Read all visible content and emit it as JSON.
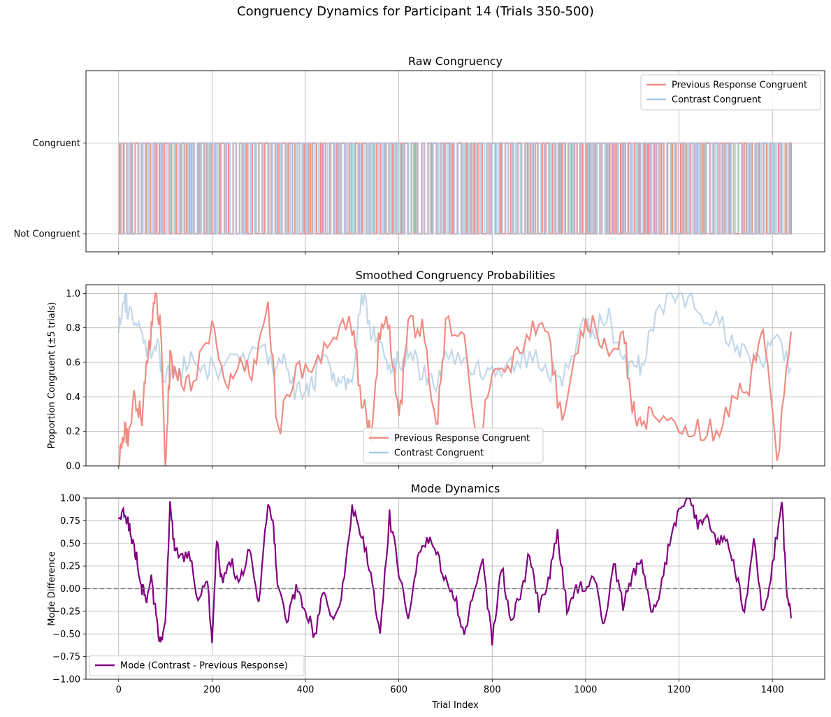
{
  "figure": {
    "title": "Congruency Dynamics for Participant 14 (Trials 350-500)"
  },
  "colors": {
    "previous_response": "#f28b82",
    "contrast": "#a8c8e1",
    "mode": "#800080",
    "grid": "#b0b0b0",
    "zero_line": "#808080"
  },
  "chart_data": [
    {
      "type": "line",
      "title": "Raw Congruency",
      "xlabel": "",
      "ylabel": "",
      "xlim": [
        -70,
        1512
      ],
      "ylim": [
        -0.2,
        1.8
      ],
      "x_range": [
        0,
        1440
      ],
      "ytick_labels": [
        "Not Congruent",
        "Congruent"
      ],
      "ytick_values": [
        0,
        1
      ],
      "grid": true,
      "legend": {
        "placement": "upper right",
        "entries": [
          "Previous Response Congruent",
          "Contrast Congruent"
        ]
      },
      "series": [
        {
          "name": "Previous Response Congruent",
          "values_description": "binary 0/1 per trial",
          "switches": 240
        },
        {
          "name": "Contrast Congruent",
          "values_description": "binary 0/1 per trial",
          "switches": 300
        }
      ]
    },
    {
      "type": "line",
      "title": "Smoothed Congruency Probabilities",
      "xlabel": "",
      "ylabel": "Proportion Congruent (±5 trials)",
      "xlim": [
        -70,
        1512
      ],
      "ylim": [
        0,
        1.05
      ],
      "yticks": [
        "0.0",
        "0.2",
        "0.4",
        "0.6",
        "0.8",
        "1.0"
      ],
      "grid": true,
      "legend": {
        "placement": "lower center",
        "entries": [
          "Previous Response Congruent",
          "Contrast Congruent"
        ]
      },
      "series": [
        {
          "name": "Previous Response Congruent",
          "x": [
            0,
            10,
            20,
            35,
            50,
            60,
            70,
            80,
            90,
            100,
            110,
            130,
            160,
            200,
            230,
            260,
            290,
            320,
            340,
            380,
            420,
            460,
            500,
            520,
            540,
            560,
            580,
            600,
            620,
            650,
            680,
            700,
            740,
            770,
            800,
            840,
            880,
            920,
            950,
            990,
            1020,
            1050,
            1080,
            1100,
            1120,
            1150,
            1200,
            1240,
            1280,
            1320,
            1350,
            1380,
            1410,
            1440
          ],
          "y": [
            0.0,
            0.18,
            0.18,
            0.4,
            0.3,
            0.6,
            0.8,
            1.0,
            0.8,
            0.0,
            0.6,
            0.5,
            0.5,
            0.8,
            0.5,
            0.55,
            0.55,
            1.0,
            0.2,
            0.55,
            0.55,
            0.8,
            0.8,
            0.4,
            0.2,
            0.8,
            0.8,
            0.25,
            0.8,
            0.8,
            0.2,
            0.8,
            0.8,
            0.1,
            0.6,
            0.6,
            0.8,
            0.8,
            0.2,
            0.8,
            0.8,
            0.6,
            0.8,
            0.35,
            0.2,
            0.35,
            0.2,
            0.2,
            0.2,
            0.4,
            0.45,
            0.8,
            0.0,
            0.8
          ]
        },
        {
          "name": "Contrast Congruent",
          "x": [
            0,
            10,
            20,
            40,
            60,
            80,
            100,
            120,
            150,
            180,
            200,
            240,
            280,
            320,
            340,
            360,
            380,
            400,
            420,
            440,
            460,
            480,
            500,
            520,
            540,
            560,
            580,
            600,
            620,
            650,
            680,
            700,
            740,
            770,
            800,
            840,
            880,
            920,
            950,
            990,
            1020,
            1050,
            1080,
            1100,
            1120,
            1150,
            1200,
            1240,
            1280,
            1320,
            1350,
            1380,
            1410,
            1440
          ],
          "y": [
            0.8,
            1.0,
            0.9,
            0.8,
            0.65,
            0.7,
            0.5,
            0.55,
            0.6,
            0.6,
            0.55,
            0.6,
            0.65,
            0.65,
            0.55,
            0.6,
            0.4,
            0.45,
            0.5,
            0.7,
            0.5,
            0.45,
            0.5,
            1.0,
            0.8,
            0.7,
            0.6,
            0.6,
            0.65,
            0.55,
            0.5,
            0.65,
            0.6,
            0.55,
            0.55,
            0.6,
            0.65,
            0.55,
            0.5,
            0.8,
            0.8,
            0.85,
            0.6,
            0.55,
            0.6,
            0.9,
            1.0,
            0.9,
            0.85,
            0.7,
            0.65,
            0.6,
            0.75,
            0.55
          ]
        }
      ]
    },
    {
      "type": "line",
      "title": "Mode Dynamics",
      "xlabel": "Trial Index",
      "ylabel": "Mode Difference",
      "xlim": [
        -70,
        1512
      ],
      "ylim": [
        -1.0,
        1.0
      ],
      "yticks": [
        "−1.00",
        "−0.75",
        "−0.50",
        "−0.25",
        "0.00",
        "0.25",
        "0.50",
        "0.75",
        "1.00"
      ],
      "xticks": [
        "0",
        "200",
        "400",
        "600",
        "800",
        "1000",
        "1200",
        "1400"
      ],
      "grid": true,
      "reference_line": {
        "y": 0.0,
        "style": "dashed"
      },
      "legend": {
        "placement": "lower left",
        "entries": [
          "Mode (Contrast - Previous Response)"
        ]
      },
      "series": [
        {
          "name": "Mode (Contrast - Previous Response)",
          "x": [
            0,
            10,
            20,
            30,
            40,
            50,
            60,
            70,
            80,
            90,
            100,
            110,
            120,
            130,
            150,
            170,
            190,
            200,
            210,
            220,
            240,
            260,
            280,
            300,
            320,
            330,
            340,
            360,
            380,
            400,
            420,
            440,
            460,
            480,
            500,
            520,
            540,
            560,
            580,
            600,
            620,
            640,
            660,
            680,
            700,
            720,
            740,
            760,
            780,
            800,
            820,
            840,
            860,
            880,
            900,
            920,
            940,
            960,
            980,
            1000,
            1020,
            1040,
            1060,
            1080,
            1100,
            1120,
            1140,
            1160,
            1180,
            1200,
            1220,
            1240,
            1260,
            1280,
            1300,
            1320,
            1340,
            1360,
            1380,
            1400,
            1420,
            1430,
            1440
          ],
          "y": [
            0.8,
            0.82,
            0.75,
            0.5,
            0.3,
            0.0,
            -0.1,
            0.1,
            -0.3,
            -0.63,
            -0.3,
            0.9,
            0.45,
            0.3,
            0.4,
            -0.1,
            0.1,
            -0.63,
            0.55,
            0.1,
            0.3,
            0.05,
            0.5,
            -0.2,
            1.0,
            0.75,
            0.1,
            -0.4,
            0.0,
            -0.2,
            -0.55,
            0.0,
            -0.35,
            0.0,
            0.9,
            0.6,
            0.2,
            -0.55,
            0.8,
            0.2,
            -0.4,
            0.3,
            0.55,
            0.4,
            0.1,
            -0.1,
            -0.5,
            0.0,
            0.3,
            -0.6,
            0.25,
            -0.35,
            -0.1,
            0.4,
            -0.2,
            0.1,
            0.6,
            -0.2,
            0.0,
            0.05,
            0.15,
            -0.45,
            0.3,
            -0.2,
            0.15,
            0.35,
            -0.3,
            0.0,
            0.5,
            0.85,
            1.0,
            0.7,
            0.8,
            0.5,
            0.6,
            0.2,
            -0.25,
            0.55,
            -0.3,
            0.25,
            1.0,
            0.0,
            -0.33
          ]
        }
      ]
    }
  ]
}
